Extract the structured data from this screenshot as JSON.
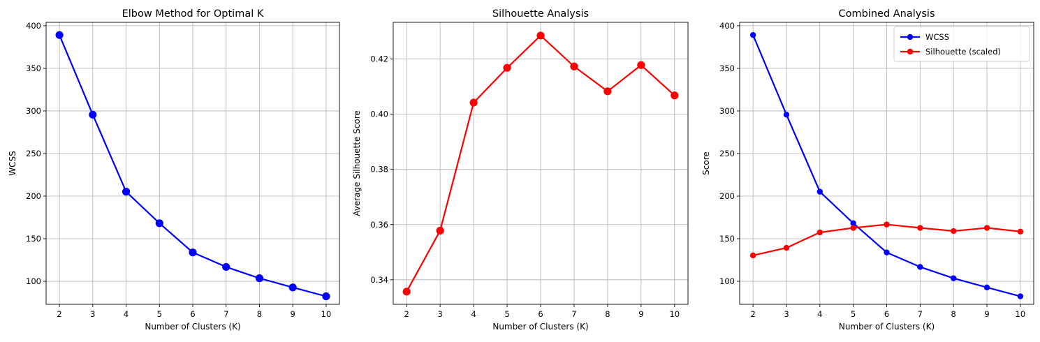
{
  "chart_data": [
    {
      "type": "line",
      "title": "Elbow Method for Optimal K",
      "xlabel": "Number of Clusters (K)",
      "ylabel": "WCSS",
      "x": [
        2,
        3,
        4,
        5,
        6,
        7,
        8,
        9,
        10
      ],
      "xticks": [
        2,
        3,
        4,
        5,
        6,
        7,
        8,
        9,
        10
      ],
      "xlim": [
        1.6,
        10.4
      ],
      "ylim": [
        73,
        404
      ],
      "yticks": [
        100,
        150,
        200,
        250,
        300,
        350,
        400
      ],
      "ytick_labels": [
        "100",
        "150",
        "200",
        "250",
        "300",
        "350",
        "400"
      ],
      "grid": true,
      "series": [
        {
          "values": [
            389.1,
            295.6,
            205.2,
            168.2,
            133.9,
            116.9,
            103.6,
            92.8,
            82.4
          ],
          "color": "#0000ff",
          "marker_size": "large"
        }
      ]
    },
    {
      "type": "line",
      "title": "Silhouette Analysis",
      "xlabel": "Number of Clusters (K)",
      "ylabel": "Average Silhouette Score",
      "x": [
        2,
        3,
        4,
        5,
        6,
        7,
        8,
        9,
        10
      ],
      "xticks": [
        2,
        3,
        4,
        5,
        6,
        7,
        8,
        9,
        10
      ],
      "xlim": [
        1.6,
        10.4
      ],
      "ylim": [
        0.3311,
        0.4333
      ],
      "yticks": [
        0.34,
        0.36,
        0.38,
        0.4,
        0.42
      ],
      "ytick_labels": [
        "0.34",
        "0.36",
        "0.38",
        "0.40",
        "0.42"
      ],
      "grid": true,
      "series": [
        {
          "values": [
            0.3357,
            0.3578,
            0.4042,
            0.4168,
            0.4285,
            0.4173,
            0.4083,
            0.4178,
            0.4068
          ],
          "color": "#ff0000",
          "marker_size": "large"
        }
      ]
    },
    {
      "type": "line",
      "title": "Combined Analysis",
      "xlabel": "Number of Clusters (K)",
      "ylabel": "Score",
      "x": [
        2,
        3,
        4,
        5,
        6,
        7,
        8,
        9,
        10
      ],
      "xticks": [
        2,
        3,
        4,
        5,
        6,
        7,
        8,
        9,
        10
      ],
      "xlim": [
        1.6,
        10.4
      ],
      "ylim": [
        73,
        404
      ],
      "yticks": [
        100,
        150,
        200,
        250,
        300,
        350,
        400
      ],
      "ytick_labels": [
        "100",
        "150",
        "200",
        "250",
        "300",
        "350",
        "400"
      ],
      "grid": true,
      "legend": "top-right",
      "series": [
        {
          "name": "WCSS",
          "values": [
            389.1,
            295.6,
            205.2,
            168.2,
            133.9,
            116.9,
            103.6,
            92.8,
            82.4
          ],
          "color": "#0000ff",
          "marker_size": "small"
        },
        {
          "name": "Silhouette (scaled)",
          "values": [
            130.4,
            139.3,
            157.4,
            162.7,
            166.7,
            162.7,
            159.0,
            162.7,
            158.4
          ],
          "color": "#ff0000",
          "marker_size": "small"
        }
      ]
    }
  ]
}
